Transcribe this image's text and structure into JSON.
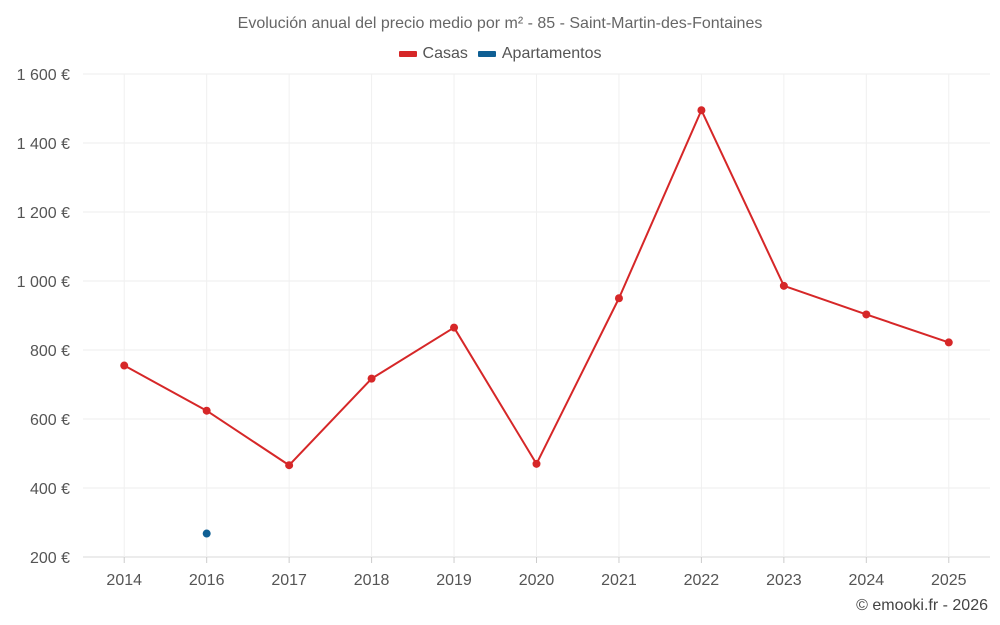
{
  "chart_data": {
    "type": "line",
    "title": "Evolución anual del precio medio por m² - 85 - Saint-Martin-des-Fontaines",
    "categories": [
      "2014",
      "2016",
      "2017",
      "2018",
      "2019",
      "2020",
      "2021",
      "2022",
      "2023",
      "2024",
      "2025"
    ],
    "series": [
      {
        "name": "Casas",
        "color": "#d62728",
        "values": [
          755,
          624,
          466,
          717,
          865,
          470,
          950,
          1495,
          986,
          903,
          822
        ]
      },
      {
        "name": "Apartamentos",
        "color": "#0f5f94",
        "values": [
          null,
          268,
          null,
          null,
          null,
          null,
          null,
          null,
          null,
          null,
          null
        ]
      }
    ],
    "ylim": [
      200,
      1600
    ],
    "yticks": [
      200,
      400,
      600,
      800,
      1000,
      1200,
      1400,
      1600
    ],
    "ytick_labels": [
      "200 €",
      "400 €",
      "600 €",
      "800 €",
      "1 000 €",
      "1 200 €",
      "1 400 €",
      "1 600 €"
    ],
    "xlabel": "",
    "ylabel": "",
    "grid": true,
    "legend_position": "top-center"
  },
  "footer": {
    "copyright": "© emooki.fr - 2026"
  }
}
